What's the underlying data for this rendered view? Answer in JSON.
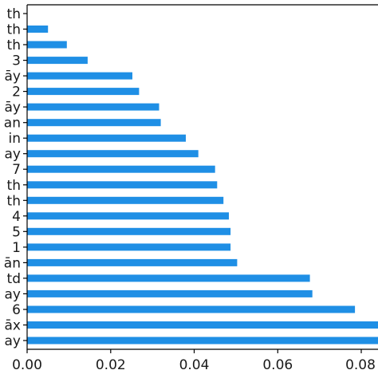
{
  "chart_data": {
    "type": "bar",
    "orientation": "horizontal",
    "title": "",
    "xlabel": "",
    "ylabel": "",
    "xlim": [
      0.0,
      0.085
    ],
    "grid": false,
    "legend": "none",
    "bar_color": "#1f8fe5",
    "x_ticks": [
      "0.00",
      "0.02",
      "0.04",
      "0.06",
      "0.08"
    ],
    "x_tick_values": [
      0.0,
      0.02,
      0.04,
      0.06,
      0.08
    ],
    "categories": [
      "ay",
      "āx",
      "6",
      "ay",
      "td",
      "ān",
      "1",
      "5",
      "4",
      "th",
      "th",
      "7",
      "ay",
      "in",
      "an",
      "āy",
      "2",
      "āy",
      "3",
      "th",
      "th",
      "th"
    ],
    "values": [
      0.0855,
      0.0855,
      0.0785,
      0.0683,
      0.0677,
      0.0503,
      0.0487,
      0.0487,
      0.0483,
      0.047,
      0.0455,
      0.045,
      0.041,
      0.038,
      0.032,
      0.0316,
      0.0268,
      0.0252,
      0.0145,
      0.0095,
      0.005,
      0.0
    ]
  }
}
